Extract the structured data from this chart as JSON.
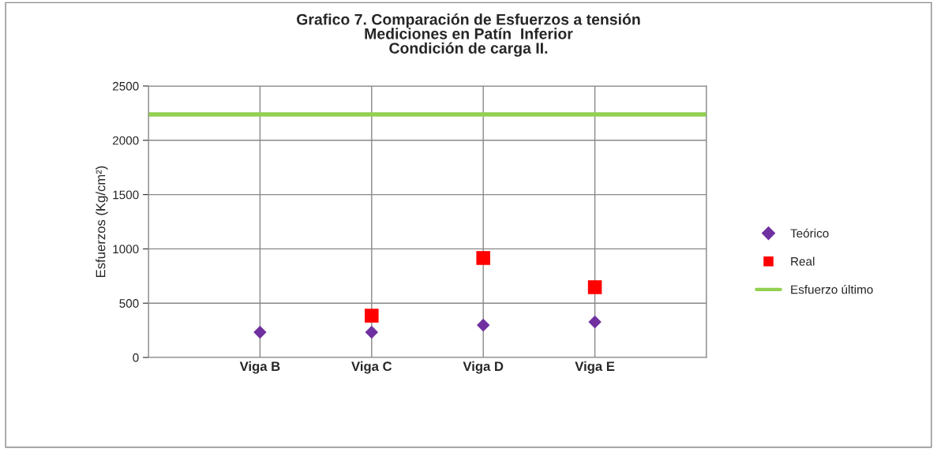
{
  "chart_data": {
    "type": "scatter",
    "title": "Grafico 7. Comparación de Esfuerzos a tensión\nMediciones en Patín  Inferior\nCondición de carga II.",
    "ylabel": "Esfuerzos (Kg/cm²)",
    "categories": [
      null,
      "Viga B",
      "Viga C",
      "Viga D",
      "Viga E",
      null
    ],
    "ylim": [
      0,
      2500
    ],
    "yticks": [
      0,
      500,
      1000,
      1500,
      2000,
      2500
    ],
    "grid": true,
    "legend": "right",
    "series": [
      {
        "name": "Teórico",
        "color": "#7030a0",
        "marker": "diamond",
        "values": [
          null,
          233,
          233,
          298,
          327,
          null
        ]
      },
      {
        "name": "Real",
        "color": "#ff0000",
        "marker": "square",
        "values": [
          null,
          null,
          385,
          916,
          647,
          null
        ]
      }
    ],
    "ref_lines": [
      {
        "axis": "y",
        "value": 2238,
        "label": "Esfuerzo último",
        "color": "#92d050",
        "line_style": "solid"
      }
    ]
  }
}
